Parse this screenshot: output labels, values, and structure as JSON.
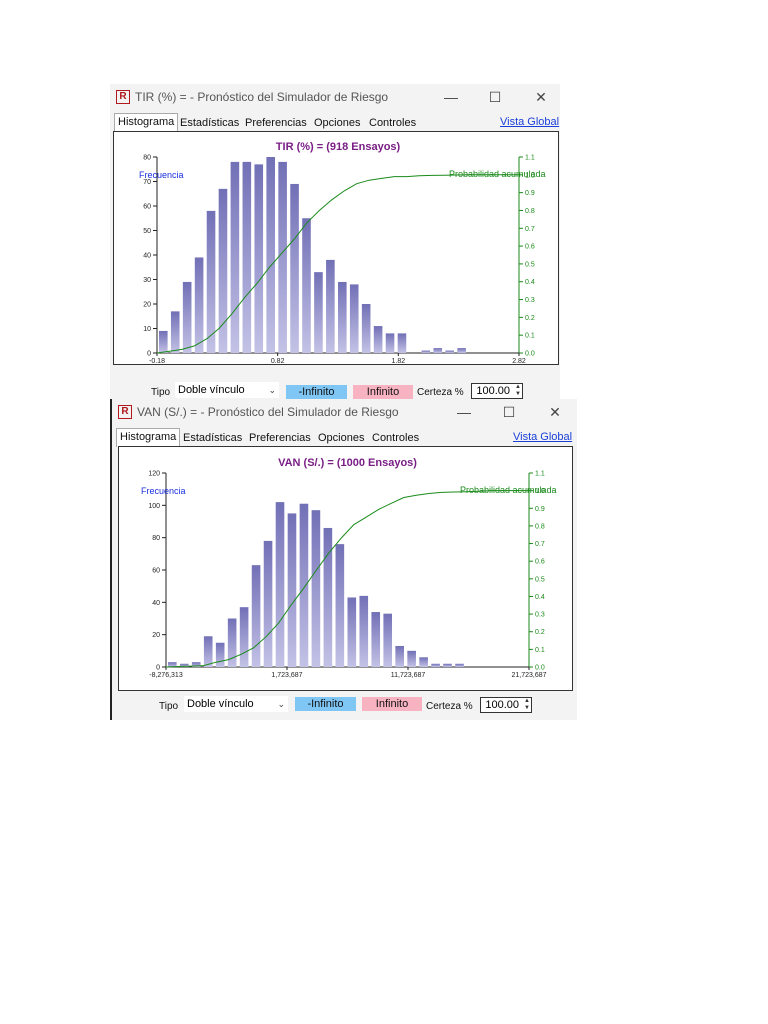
{
  "windows": [
    {
      "title": "TIR (%) = - Pronóstico del Simulador de Riesgo",
      "tabs": [
        "Histograma",
        "Estadísticas",
        "Preferencias",
        "Opciones",
        "Controles"
      ],
      "vista_global": "Vista Global",
      "controls": {
        "tipo_label": "Tipo",
        "tipo_value": "Doble vínculo",
        "neg_button": "-Infinito",
        "pos_button": "Infinito",
        "certeza_label": "Certeza %",
        "certeza_value": "100.00"
      },
      "chart_data": {
        "type": "bar",
        "title": "TIR (%) = (918 Ensayos)",
        "ylabel": "Frecuencia",
        "y2label": "Probabilidad acumulada",
        "ylim": [
          0,
          80
        ],
        "yticks": [
          "0",
          "10",
          "20",
          "30",
          "40",
          "50",
          "60",
          "70",
          "80"
        ],
        "y2lim": [
          0,
          1.1
        ],
        "y2ticks": [
          "0.0",
          "0.1",
          "0.2",
          "0.3",
          "0.4",
          "0.5",
          "0.6",
          "0.7",
          "0.8",
          "0.9",
          "1.0",
          "1.1"
        ],
        "xticks": [
          "-0.18",
          "0.82",
          "1.82",
          "2.82"
        ],
        "values": [
          9,
          17,
          29,
          39,
          58,
          67,
          78,
          78,
          77,
          80,
          78,
          69,
          55,
          33,
          38,
          29,
          28,
          20,
          11,
          8,
          8,
          0,
          1,
          2,
          1,
          2
        ],
        "cumulative": [
          0,
          0.01,
          0.02,
          0.04,
          0.08,
          0.14,
          0.22,
          0.31,
          0.39,
          0.48,
          0.56,
          0.64,
          0.73,
          0.8,
          0.86,
          0.91,
          0.95,
          0.97,
          0.98,
          0.99,
          0.99,
          0.995,
          0.997,
          0.998,
          0.999,
          1.0,
          1.0,
          1.0,
          1.0,
          1.0
        ]
      }
    },
    {
      "title": "VAN (S/.) = - Pronóstico del Simulador de Riesgo",
      "tabs": [
        "Histograma",
        "Estadísticas",
        "Preferencias",
        "Opciones",
        "Controles"
      ],
      "vista_global": "Vista Global",
      "controls": {
        "tipo_label": "Tipo",
        "tipo_value": "Doble vínculo",
        "neg_button": "-Infinito",
        "pos_button": "Infinito",
        "certeza_label": "Certeza %",
        "certeza_value": "100.00"
      },
      "chart_data": {
        "type": "bar",
        "title": "VAN (S/.) = (1000 Ensayos)",
        "ylabel": "Frecuencia",
        "y2label": "Probabilidad acumulada",
        "ylim": [
          0,
          120
        ],
        "yticks": [
          "0",
          "20",
          "40",
          "60",
          "80",
          "100",
          "120"
        ],
        "y2lim": [
          0,
          1.1
        ],
        "y2ticks": [
          "0.0",
          "0.1",
          "0.2",
          "0.3",
          "0.4",
          "0.5",
          "0.6",
          "0.7",
          "0.8",
          "0.9",
          "1.0",
          "1.1"
        ],
        "xticks": [
          "-8,276,313",
          "1,723,687",
          "11,723,687",
          "21,723,687"
        ],
        "values": [
          3,
          2,
          3,
          19,
          15,
          30,
          37,
          63,
          78,
          102,
          95,
          101,
          97,
          86,
          76,
          43,
          44,
          34,
          33,
          13,
          10,
          6,
          2,
          2,
          2
        ],
        "cumulative": [
          0,
          0.003,
          0.005,
          0.008,
          0.027,
          0.042,
          0.072,
          0.109,
          0.172,
          0.25,
          0.352,
          0.447,
          0.548,
          0.645,
          0.731,
          0.807,
          0.85,
          0.894,
          0.928,
          0.961,
          0.974,
          0.984,
          0.99,
          0.992,
          0.994,
          0.996,
          1.0,
          1.0,
          1.0,
          1.0
        ]
      }
    }
  ]
}
